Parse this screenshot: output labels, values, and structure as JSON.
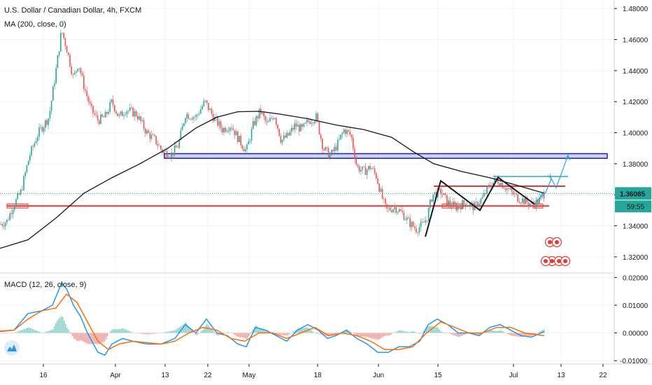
{
  "chart_data": {
    "type": "candlestick",
    "title": "U.S. Dollar / Canadian Dollar, 4h, FXCM",
    "indicator_label": "MA (200, close, 0)",
    "macd_label": "MACD (12, 26, close, 9)",
    "price_axis_ticks": [
      "1.48000",
      "1.46000",
      "1.44000",
      "1.42000",
      "1.40000",
      "1.38000",
      "1.36000",
      "1.34000",
      "1.32000"
    ],
    "macd_axis_ticks": [
      "0.02000",
      "0.01000",
      "0.00000",
      "-0.01000"
    ],
    "x_ticks": [
      "16",
      "Apr",
      "13",
      "22",
      "May",
      "18",
      "Jun",
      "15",
      "Jul",
      "13",
      "22"
    ],
    "current_price": "1.36085",
    "countdown": "59:55",
    "price_ylim": [
      1.3105,
      1.4855
    ],
    "macd_ylim": [
      -0.0112,
      0.0211
    ],
    "close_path": [
      {
        "x": 0,
        "y": 1.341
      },
      {
        "x": 10,
        "y": 1.343
      },
      {
        "x": 18,
        "y": 1.352
      },
      {
        "x": 30,
        "y": 1.362
      },
      {
        "x": 42,
        "y": 1.385
      },
      {
        "x": 55,
        "y": 1.4
      },
      {
        "x": 70,
        "y": 1.41
      },
      {
        "x": 80,
        "y": 1.44
      },
      {
        "x": 88,
        "y": 1.466
      },
      {
        "x": 95,
        "y": 1.455
      },
      {
        "x": 105,
        "y": 1.435
      },
      {
        "x": 112,
        "y": 1.445
      },
      {
        "x": 120,
        "y": 1.43
      },
      {
        "x": 130,
        "y": 1.415
      },
      {
        "x": 140,
        "y": 1.408
      },
      {
        "x": 150,
        "y": 1.41
      },
      {
        "x": 160,
        "y": 1.42
      },
      {
        "x": 170,
        "y": 1.41
      },
      {
        "x": 180,
        "y": 1.415
      },
      {
        "x": 195,
        "y": 1.412
      },
      {
        "x": 210,
        "y": 1.4
      },
      {
        "x": 222,
        "y": 1.395
      },
      {
        "x": 232,
        "y": 1.388
      },
      {
        "x": 245,
        "y": 1.386
      },
      {
        "x": 255,
        "y": 1.392
      },
      {
        "x": 265,
        "y": 1.412
      },
      {
        "x": 280,
        "y": 1.41
      },
      {
        "x": 293,
        "y": 1.42
      },
      {
        "x": 305,
        "y": 1.41
      },
      {
        "x": 318,
        "y": 1.402
      },
      {
        "x": 330,
        "y": 1.405
      },
      {
        "x": 342,
        "y": 1.395
      },
      {
        "x": 352,
        "y": 1.388
      },
      {
        "x": 362,
        "y": 1.405
      },
      {
        "x": 372,
        "y": 1.414
      },
      {
        "x": 382,
        "y": 1.405
      },
      {
        "x": 392,
        "y": 1.412
      },
      {
        "x": 402,
        "y": 1.395
      },
      {
        "x": 412,
        "y": 1.398
      },
      {
        "x": 422,
        "y": 1.405
      },
      {
        "x": 432,
        "y": 1.402
      },
      {
        "x": 442,
        "y": 1.408
      },
      {
        "x": 452,
        "y": 1.41
      },
      {
        "x": 462,
        "y": 1.39
      },
      {
        "x": 472,
        "y": 1.385
      },
      {
        "x": 482,
        "y": 1.392
      },
      {
        "x": 492,
        "y": 1.402
      },
      {
        "x": 502,
        "y": 1.398
      },
      {
        "x": 510,
        "y": 1.378
      },
      {
        "x": 520,
        "y": 1.375
      },
      {
        "x": 530,
        "y": 1.378
      },
      {
        "x": 538,
        "y": 1.372
      },
      {
        "x": 545,
        "y": 1.36
      },
      {
        "x": 552,
        "y": 1.35
      },
      {
        "x": 565,
        "y": 1.352
      },
      {
        "x": 575,
        "y": 1.348
      },
      {
        "x": 585,
        "y": 1.342
      },
      {
        "x": 595,
        "y": 1.338
      },
      {
        "x": 603,
        "y": 1.34
      },
      {
        "x": 610,
        "y": 1.345
      },
      {
        "x": 618,
        "y": 1.36
      },
      {
        "x": 630,
        "y": 1.362
      },
      {
        "x": 640,
        "y": 1.355
      },
      {
        "x": 652,
        "y": 1.352
      },
      {
        "x": 665,
        "y": 1.355
      },
      {
        "x": 678,
        "y": 1.352
      },
      {
        "x": 690,
        "y": 1.358
      },
      {
        "x": 700,
        "y": 1.366
      },
      {
        "x": 710,
        "y": 1.37
      },
      {
        "x": 720,
        "y": 1.366
      },
      {
        "x": 730,
        "y": 1.362
      },
      {
        "x": 740,
        "y": 1.358
      },
      {
        "x": 750,
        "y": 1.356
      },
      {
        "x": 760,
        "y": 1.354
      },
      {
        "x": 770,
        "y": 1.356
      },
      {
        "x": 778,
        "y": 1.3608
      }
    ],
    "ma200": [
      {
        "x": 0,
        "y": 1.3255
      },
      {
        "x": 40,
        "y": 1.331
      },
      {
        "x": 80,
        "y": 1.345
      },
      {
        "x": 120,
        "y": 1.361
      },
      {
        "x": 160,
        "y": 1.371
      },
      {
        "x": 200,
        "y": 1.38
      },
      {
        "x": 240,
        "y": 1.39
      },
      {
        "x": 280,
        "y": 1.403
      },
      {
        "x": 310,
        "y": 1.41
      },
      {
        "x": 340,
        "y": 1.4135
      },
      {
        "x": 370,
        "y": 1.4138
      },
      {
        "x": 400,
        "y": 1.412
      },
      {
        "x": 440,
        "y": 1.409
      },
      {
        "x": 480,
        "y": 1.405
      },
      {
        "x": 520,
        "y": 1.402
      },
      {
        "x": 560,
        "y": 1.397
      },
      {
        "x": 590,
        "y": 1.388
      },
      {
        "x": 620,
        "y": 1.38
      },
      {
        "x": 660,
        "y": 1.375
      },
      {
        "x": 700,
        "y": 1.371
      },
      {
        "x": 740,
        "y": 1.366
      },
      {
        "x": 778,
        "y": 1.361
      }
    ],
    "macd_line": [
      {
        "x": 0,
        "y": 0.0005
      },
      {
        "x": 20,
        "y": 0.001
      },
      {
        "x": 40,
        "y": 0.007
      },
      {
        "x": 60,
        "y": 0.008
      },
      {
        "x": 75,
        "y": 0.01
      },
      {
        "x": 88,
        "y": 0.018
      },
      {
        "x": 95,
        "y": 0.016
      },
      {
        "x": 105,
        "y": 0.01
      },
      {
        "x": 115,
        "y": 0.006
      },
      {
        "x": 125,
        "y": 0.0
      },
      {
        "x": 140,
        "y": -0.007
      },
      {
        "x": 150,
        "y": -0.008
      },
      {
        "x": 160,
        "y": -0.004
      },
      {
        "x": 175,
        "y": -0.002
      },
      {
        "x": 190,
        "y": -0.003
      },
      {
        "x": 210,
        "y": -0.004
      },
      {
        "x": 230,
        "y": -0.004
      },
      {
        "x": 250,
        "y": -0.002
      },
      {
        "x": 265,
        "y": 0.003
      },
      {
        "x": 280,
        "y": 0.0
      },
      {
        "x": 295,
        "y": 0.005
      },
      {
        "x": 310,
        "y": 0.0
      },
      {
        "x": 325,
        "y": -0.001
      },
      {
        "x": 340,
        "y": -0.004
      },
      {
        "x": 352,
        "y": -0.005
      },
      {
        "x": 365,
        "y": 0.002
      },
      {
        "x": 380,
        "y": 0.001
      },
      {
        "x": 395,
        "y": -0.001
      },
      {
        "x": 410,
        "y": -0.003
      },
      {
        "x": 425,
        "y": 0.001
      },
      {
        "x": 440,
        "y": 0.003
      },
      {
        "x": 455,
        "y": 0.001
      },
      {
        "x": 468,
        "y": -0.002
      },
      {
        "x": 480,
        "y": -0.001
      },
      {
        "x": 495,
        "y": 0.001
      },
      {
        "x": 510,
        "y": -0.002
      },
      {
        "x": 525,
        "y": -0.004
      },
      {
        "x": 540,
        "y": -0.007
      },
      {
        "x": 555,
        "y": -0.007
      },
      {
        "x": 570,
        "y": -0.005
      },
      {
        "x": 585,
        "y": -0.005
      },
      {
        "x": 600,
        "y": -0.003
      },
      {
        "x": 612,
        "y": 0.003
      },
      {
        "x": 625,
        "y": 0.005
      },
      {
        "x": 640,
        "y": 0.003
      },
      {
        "x": 655,
        "y": 0.0
      },
      {
        "x": 670,
        "y": 0.0
      },
      {
        "x": 685,
        "y": -0.001
      },
      {
        "x": 700,
        "y": 0.002
      },
      {
        "x": 715,
        "y": 0.003
      },
      {
        "x": 730,
        "y": 0.001
      },
      {
        "x": 745,
        "y": -0.001
      },
      {
        "x": 760,
        "y": -0.0015
      },
      {
        "x": 778,
        "y": 0.0005
      }
    ],
    "signal_line": [
      {
        "x": 0,
        "y": 0.0007
      },
      {
        "x": 20,
        "y": 0.001
      },
      {
        "x": 40,
        "y": 0.005
      },
      {
        "x": 60,
        "y": 0.008
      },
      {
        "x": 80,
        "y": 0.009
      },
      {
        "x": 95,
        "y": 0.014
      },
      {
        "x": 110,
        "y": 0.011
      },
      {
        "x": 125,
        "y": 0.004
      },
      {
        "x": 140,
        "y": -0.003
      },
      {
        "x": 155,
        "y": -0.006
      },
      {
        "x": 170,
        "y": -0.004
      },
      {
        "x": 190,
        "y": -0.003
      },
      {
        "x": 210,
        "y": -0.0035
      },
      {
        "x": 230,
        "y": -0.004
      },
      {
        "x": 250,
        "y": -0.003
      },
      {
        "x": 270,
        "y": 0.0
      },
      {
        "x": 290,
        "y": 0.002
      },
      {
        "x": 310,
        "y": 0.001
      },
      {
        "x": 330,
        "y": -0.002
      },
      {
        "x": 350,
        "y": -0.003
      },
      {
        "x": 370,
        "y": 0.0
      },
      {
        "x": 390,
        "y": 0.0
      },
      {
        "x": 410,
        "y": -0.002
      },
      {
        "x": 430,
        "y": 0.0
      },
      {
        "x": 450,
        "y": 0.002
      },
      {
        "x": 470,
        "y": -0.001
      },
      {
        "x": 490,
        "y": 0.0
      },
      {
        "x": 510,
        "y": -0.001
      },
      {
        "x": 530,
        "y": -0.003
      },
      {
        "x": 550,
        "y": -0.006
      },
      {
        "x": 570,
        "y": -0.006
      },
      {
        "x": 590,
        "y": -0.005
      },
      {
        "x": 610,
        "y": 0.0
      },
      {
        "x": 630,
        "y": 0.004
      },
      {
        "x": 650,
        "y": 0.002
      },
      {
        "x": 670,
        "y": 0.0
      },
      {
        "x": 690,
        "y": 0.0
      },
      {
        "x": 710,
        "y": 0.002
      },
      {
        "x": 730,
        "y": 0.002
      },
      {
        "x": 750,
        "y": 0.0
      },
      {
        "x": 778,
        "y": -0.001
      }
    ],
    "support_lines": [
      {
        "y": 1.3528,
        "x0": 10,
        "x1": 785,
        "color": "#e53935"
      },
      {
        "y": 1.3655,
        "x0": 620,
        "x1": 808,
        "color": "#e53935"
      }
    ],
    "resistance_zone": {
      "y0": 1.3835,
      "y1": 1.3865,
      "x0": 235,
      "x1": 868,
      "color": "#1e22aa"
    },
    "target_line": {
      "y": 1.3718,
      "x0": 705,
      "x1": 812,
      "color": "#26a6d9"
    },
    "pattern_path": [
      {
        "x": 608,
        "y": 1.333
      },
      {
        "x": 630,
        "y": 1.369
      },
      {
        "x": 686,
        "y": 1.35
      },
      {
        "x": 712,
        "y": 1.3712
      },
      {
        "x": 764,
        "y": 1.354
      }
    ],
    "projection_path": [
      {
        "x": 764,
        "y": 1.354
      },
      {
        "x": 780,
        "y": 1.3615
      },
      {
        "x": 788,
        "y": 1.3703
      },
      {
        "x": 795,
        "y": 1.3645
      },
      {
        "x": 812,
        "y": 1.3855
      }
    ],
    "colors": {
      "up": "#26a69a",
      "down": "#ef5350",
      "ma": "#131722",
      "macd": "#2196f3",
      "signal": "#ff6d00",
      "price_tag": "#26a69a",
      "grid": "#f0f3fa"
    }
  }
}
